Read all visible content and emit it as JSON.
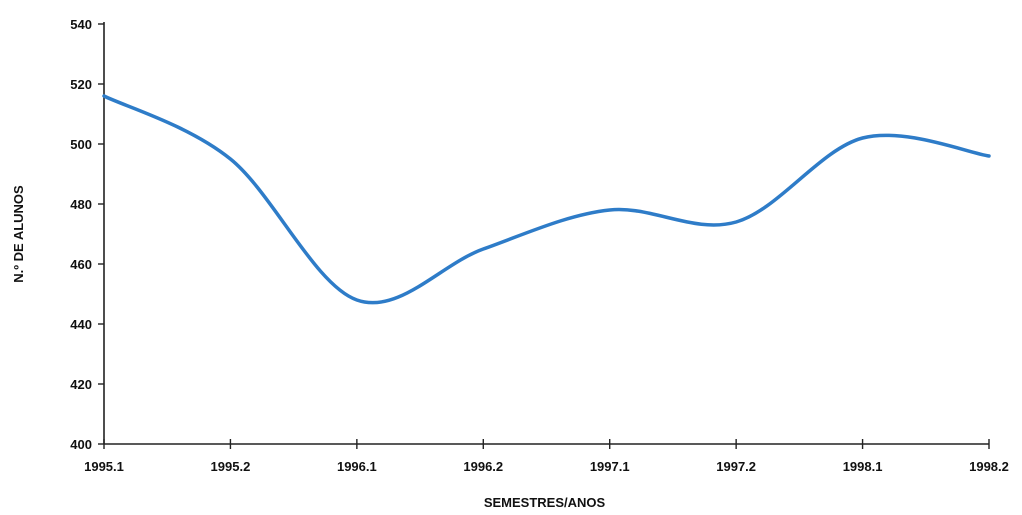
{
  "chart_data": {
    "type": "line",
    "title": "",
    "xlabel": "SEMESTRES/ANOS",
    "ylabel": "N.º DE ALUNOS",
    "x": [
      "1995.1",
      "1995.2",
      "1996.1",
      "1996.2",
      "1997.1",
      "1997.2",
      "1998.1",
      "1998.2"
    ],
    "ylim": [
      400,
      540
    ],
    "yticks": [
      400,
      420,
      440,
      460,
      480,
      500,
      520,
      540
    ],
    "grid": false,
    "series": [
      {
        "values": [
          516,
          495,
          448,
          465,
          478,
          474,
          502,
          496
        ],
        "color": "#2e7cc8"
      }
    ]
  }
}
